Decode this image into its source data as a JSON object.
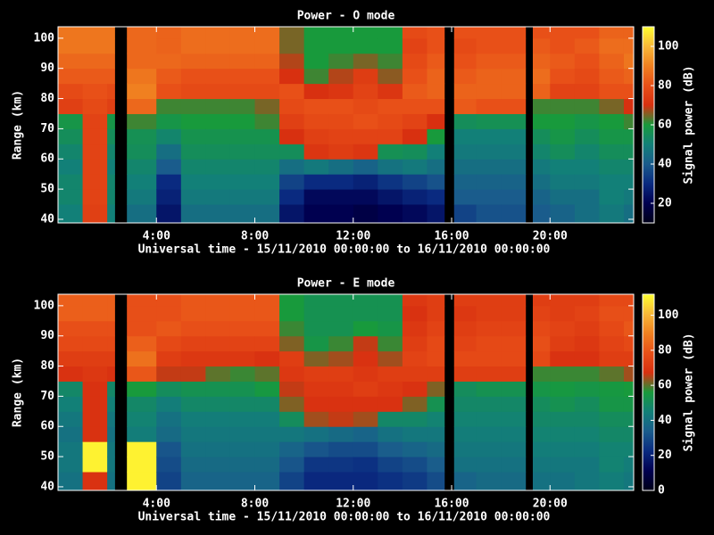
{
  "chart_data": [
    {
      "type": "heatmap",
      "title": "Power - O mode",
      "xlabel": "Universal time - 15/11/2010 00:00:00 to 16/11/2010 00:00:00",
      "ylabel": "Range (km)",
      "colorbar_label": "Signal power (dB)",
      "x_bins": [
        0,
        1,
        2,
        2.3,
        2.8,
        4,
        5,
        6,
        7,
        8,
        9,
        10,
        11,
        12,
        13,
        14,
        15,
        15.7,
        16.1,
        17,
        18,
        19,
        19.3,
        20,
        21,
        22,
        23,
        23.4
      ],
      "y_bins": [
        38.8,
        45,
        50,
        55,
        60,
        65,
        70,
        75,
        80,
        85,
        90,
        95,
        100,
        103.8
      ],
      "values": [
        [
          50,
          52,
          52,
          50,
          52,
          55,
          58,
          75,
          78,
          82,
          85,
          88,
          88
        ],
        [
          75,
          76,
          76,
          76,
          76,
          76,
          76,
          78,
          80,
          82,
          85,
          88,
          88
        ],
        [
          50,
          52,
          52,
          50,
          52,
          55,
          58,
          75,
          78,
          82,
          85,
          88,
          88
        ],
        null,
        [
          45,
          48,
          50,
          52,
          55,
          56,
          62,
          85,
          90,
          88,
          85,
          85,
          85
        ],
        [
          25,
          28,
          30,
          40,
          45,
          52,
          58,
          62,
          80,
          82,
          85,
          84,
          84
        ],
        [
          45,
          48,
          50,
          52,
          55,
          57,
          60,
          62,
          78,
          80,
          84,
          86,
          86
        ],
        [
          45,
          48,
          50,
          52,
          55,
          57,
          60,
          62,
          78,
          80,
          84,
          86,
          86
        ],
        [
          45,
          48,
          50,
          52,
          55,
          57,
          60,
          62,
          78,
          80,
          84,
          86,
          86
        ],
        [
          45,
          48,
          50,
          52,
          55,
          57,
          62,
          65,
          78,
          80,
          84,
          86,
          86
        ],
        [
          25,
          30,
          35,
          45,
          55,
          70,
          75,
          78,
          80,
          70,
          68,
          65,
          65
        ],
        [
          20,
          22,
          30,
          48,
          72,
          75,
          78,
          80,
          70,
          62,
          60,
          60,
          60
        ],
        [
          20,
          22,
          30,
          45,
          74,
          76,
          78,
          80,
          72,
          68,
          62,
          60,
          60
        ],
        [
          18,
          22,
          28,
          42,
          72,
          76,
          80,
          78,
          76,
          74,
          65,
          60,
          60
        ],
        [
          20,
          25,
          32,
          46,
          56,
          76,
          78,
          80,
          72,
          66,
          62,
          60,
          60
        ],
        [
          22,
          28,
          35,
          48,
          55,
          70,
          76,
          80,
          82,
          80,
          78,
          76,
          78
        ],
        [
          25,
          30,
          38,
          45,
          50,
          60,
          70,
          80,
          84,
          84,
          82,
          80,
          80
        ],
        null,
        [
          35,
          40,
          42,
          45,
          48,
          50,
          55,
          82,
          84,
          82,
          80,
          78,
          80
        ],
        [
          38,
          40,
          42,
          45,
          48,
          50,
          56,
          80,
          84,
          84,
          82,
          80,
          80
        ],
        [
          38,
          40,
          42,
          45,
          48,
          50,
          56,
          80,
          84,
          84,
          82,
          80,
          80
        ],
        null,
        [
          40,
          42,
          45,
          48,
          52,
          55,
          60,
          62,
          84,
          86,
          84,
          82,
          80
        ],
        [
          42,
          45,
          48,
          50,
          55,
          58,
          60,
          62,
          76,
          80,
          82,
          80,
          80
        ],
        [
          45,
          45,
          48,
          50,
          52,
          55,
          58,
          62,
          76,
          78,
          80,
          82,
          80
        ],
        [
          48,
          50,
          50,
          52,
          55,
          58,
          60,
          65,
          80,
          82,
          84,
          86,
          84
        ],
        [
          45,
          48,
          50,
          52,
          55,
          58,
          62,
          70,
          80,
          84,
          88,
          86,
          84
        ]
      ],
      "xlim": [
        0,
        23.4
      ],
      "ylim": [
        38.8,
        103.8
      ],
      "xticks": [
        {
          "value": 4,
          "label": "4:00"
        },
        {
          "value": 8,
          "label": "8:00"
        },
        {
          "value": 12,
          "label": "12:00"
        },
        {
          "value": 16,
          "label": "16:00"
        },
        {
          "value": 20,
          "label": "20:00"
        }
      ],
      "yticks": [
        40,
        50,
        60,
        70,
        80,
        90,
        100
      ],
      "clim": [
        10,
        110
      ],
      "cticks": [
        20,
        40,
        60,
        80,
        100
      ],
      "colormap": [
        "#000018",
        "#000050",
        "#0a2a80",
        "#1a5c8c",
        "#128078",
        "#189a3c",
        "#d83010",
        "#e85018",
        "#f08020",
        "#f8b838",
        "#ffff30"
      ]
    },
    {
      "type": "heatmap",
      "title": "Power - E mode",
      "xlabel": "Universal time - 15/11/2010 00:00:00 to 16/11/2010 00:00:00",
      "ylabel": "Range (km)",
      "colorbar_label": "Signal power (dB)",
      "x_bins": [
        0,
        1,
        2,
        2.3,
        2.8,
        4,
        5,
        6,
        7,
        8,
        9,
        10,
        11,
        12,
        13,
        14,
        15,
        15.7,
        16.1,
        17,
        18,
        19,
        19.3,
        20,
        21,
        22,
        23,
        23.4
      ],
      "y_bins": [
        38.8,
        45,
        50,
        55,
        60,
        65,
        70,
        75,
        80,
        85,
        90,
        95,
        100,
        103.8
      ],
      "values": [
        [
          40,
          42,
          42,
          40,
          42,
          45,
          48,
          68,
          72,
          76,
          78,
          82,
          82
        ],
        [
          68,
          110,
          110,
          68,
          68,
          68,
          68,
          70,
          72,
          76,
          78,
          82,
          82
        ],
        [
          40,
          42,
          42,
          40,
          42,
          45,
          48,
          68,
          72,
          76,
          78,
          82,
          82
        ],
        null,
        [
          110,
          110,
          110,
          44,
          46,
          48,
          56,
          80,
          86,
          82,
          78,
          78,
          78
        ],
        [
          28,
          30,
          32,
          38,
          40,
          44,
          50,
          66,
          72,
          76,
          80,
          78,
          78
        ],
        [
          36,
          38,
          40,
          42,
          44,
          48,
          52,
          66,
          70,
          74,
          78,
          80,
          80
        ],
        [
          36,
          38,
          40,
          42,
          44,
          48,
          52,
          60,
          70,
          74,
          78,
          80,
          80
        ],
        [
          36,
          38,
          40,
          42,
          44,
          48,
          52,
          58,
          70,
          74,
          78,
          80,
          80
        ],
        [
          36,
          38,
          40,
          42,
          44,
          48,
          55,
          60,
          68,
          74,
          78,
          80,
          80
        ],
        [
          28,
          32,
          36,
          42,
          50,
          62,
          66,
          70,
          72,
          62,
          58,
          56,
          56
        ],
        [
          22,
          25,
          32,
          40,
          64,
          68,
          70,
          72,
          62,
          54,
          52,
          52,
          52
        ],
        [
          22,
          25,
          30,
          38,
          66,
          68,
          70,
          72,
          64,
          58,
          52,
          52,
          52
        ],
        [
          22,
          24,
          30,
          36,
          64,
          68,
          72,
          70,
          68,
          66,
          56,
          52,
          52
        ],
        [
          24,
          28,
          34,
          40,
          48,
          68,
          70,
          72,
          64,
          58,
          54,
          52,
          52
        ],
        [
          26,
          30,
          36,
          42,
          48,
          62,
          68,
          72,
          74,
          72,
          70,
          68,
          70
        ],
        [
          30,
          34,
          38,
          42,
          46,
          52,
          62,
          72,
          76,
          76,
          74,
          72,
          72
        ],
        null,
        [
          36,
          40,
          42,
          44,
          46,
          48,
          50,
          72,
          76,
          74,
          72,
          70,
          72
        ],
        [
          38,
          40,
          42,
          44,
          46,
          48,
          52,
          72,
          76,
          76,
          74,
          72,
          72
        ],
        [
          38,
          40,
          42,
          44,
          46,
          48,
          52,
          72,
          76,
          76,
          74,
          72,
          72
        ],
        null,
        [
          40,
          42,
          44,
          46,
          48,
          50,
          54,
          58,
          76,
          78,
          76,
          74,
          72
        ],
        [
          40,
          42,
          44,
          46,
          48,
          52,
          55,
          58,
          68,
          72,
          74,
          72,
          72
        ],
        [
          42,
          42,
          44,
          46,
          48,
          50,
          54,
          58,
          68,
          70,
          72,
          74,
          72
        ],
        [
          44,
          46,
          46,
          48,
          50,
          54,
          55,
          60,
          72,
          74,
          76,
          78,
          76
        ],
        [
          42,
          44,
          46,
          48,
          50,
          54,
          56,
          64,
          72,
          76,
          80,
          78,
          76
        ]
      ],
      "xlim": [
        0,
        23.4
      ],
      "ylim": [
        38.8,
        103.8
      ],
      "xticks": [
        {
          "value": 4,
          "label": "4:00"
        },
        {
          "value": 8,
          "label": "8:00"
        },
        {
          "value": 12,
          "label": "12:00"
        },
        {
          "value": 16,
          "label": "16:00"
        },
        {
          "value": 20,
          "label": "20:00"
        }
      ],
      "yticks": [
        40,
        50,
        60,
        70,
        80,
        90,
        100
      ],
      "clim": [
        0,
        112
      ],
      "cticks": [
        0,
        20,
        40,
        60,
        80,
        100
      ],
      "colormap": [
        "#000018",
        "#000050",
        "#0a2a80",
        "#1a5c8c",
        "#128078",
        "#189a3c",
        "#d83010",
        "#e85018",
        "#f08020",
        "#f8b838",
        "#ffff30"
      ]
    }
  ]
}
